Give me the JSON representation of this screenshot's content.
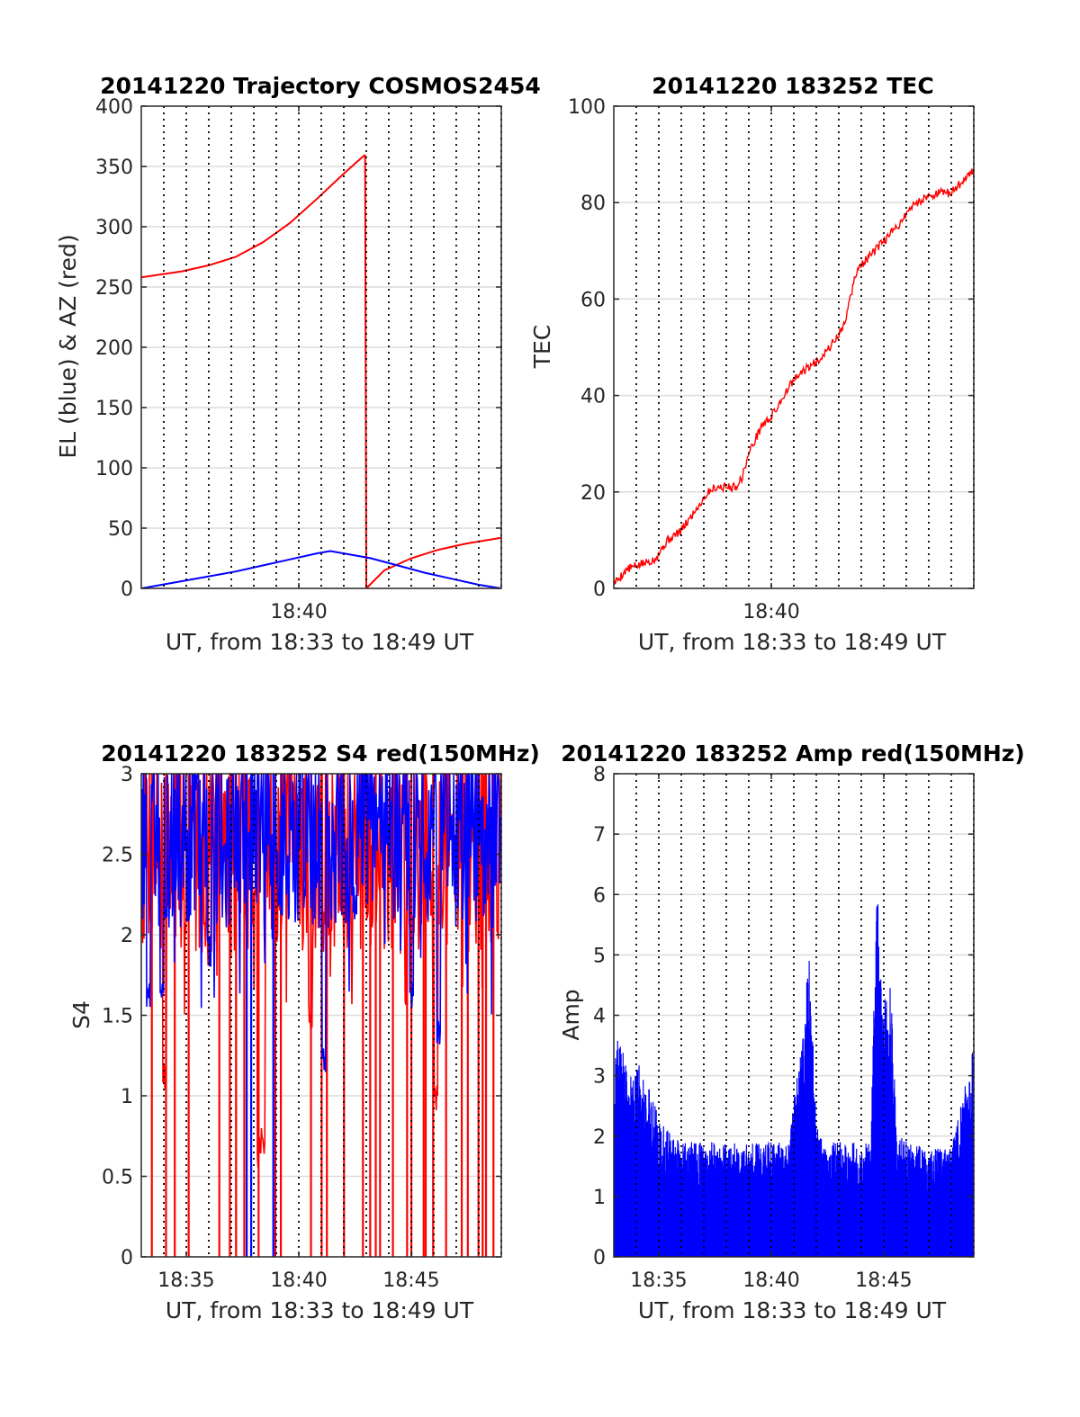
{
  "colors": {
    "red": "#ff0000",
    "blue": "#0000ff",
    "axis": "#262626",
    "grid": "#dcdcdc",
    "vgrid": "#000000"
  },
  "chart_data": [
    {
      "id": "traj",
      "type": "line",
      "title": "20141220 Trajectory COSMOS2454",
      "xlabel": "UT, from 18:33 to 18:49 UT",
      "ylabel": "EL (blue) & AZ (red)",
      "xlim": [
        18.55,
        18.8167
      ],
      "ylim": [
        0,
        400
      ],
      "yticks": [
        0,
        50,
        100,
        150,
        200,
        250,
        300,
        350,
        400
      ],
      "ytick_labels": [
        "0",
        "50",
        "100",
        "150",
        "200",
        "250",
        "300",
        "350",
        "400"
      ],
      "xticks": [
        18.6667
      ],
      "xtick_labels": [
        "18:40"
      ],
      "vgrid_step_min": 1,
      "series": [
        {
          "color": "red",
          "style": "az",
          "x": [
            18.55,
            18.58,
            18.6,
            18.62,
            18.64,
            18.66,
            18.68,
            18.7,
            18.715,
            18.7158,
            18.7167,
            18.73,
            18.75,
            18.77,
            18.79,
            18.8167
          ],
          "y": [
            258,
            263,
            268,
            275,
            287,
            303,
            323,
            344,
            359,
            359,
            0,
            15,
            25,
            32,
            37,
            42
          ]
        },
        {
          "color": "blue",
          "style": "el",
          "x": [
            18.55,
            18.58,
            18.6,
            18.62,
            18.64,
            18.66,
            18.68,
            18.69,
            18.7,
            18.72,
            18.74,
            18.76,
            18.78,
            18.8,
            18.8167
          ],
          "y": [
            0,
            6,
            10,
            14,
            19,
            24,
            29,
            31,
            29,
            25,
            19,
            13,
            8,
            3,
            0
          ]
        }
      ]
    },
    {
      "id": "tec",
      "type": "line",
      "title": "20141220 183252 TEC",
      "xlabel": "UT, from 18:33 to 18:49 UT",
      "ylabel": "TEC",
      "xlim": [
        18.55,
        18.8167
      ],
      "ylim": [
        0,
        100
      ],
      "yticks": [
        0,
        20,
        40,
        60,
        80,
        100
      ],
      "ytick_labels": [
        "0",
        "20",
        "40",
        "60",
        "80",
        "100"
      ],
      "xticks": [
        18.6667
      ],
      "xtick_labels": [
        "18:40"
      ],
      "vgrid_step_min": 1,
      "series": [
        {
          "color": "red",
          "style": "noisy",
          "x": [
            18.55,
            18.56,
            18.57,
            18.58,
            18.59,
            18.6,
            18.61,
            18.62,
            18.625,
            18.63,
            18.64,
            18.645,
            18.65,
            18.66,
            18.665,
            18.67,
            18.68,
            18.69,
            18.7,
            18.71,
            18.72,
            18.73,
            18.74,
            18.75,
            18.76,
            18.77,
            18.78,
            18.79,
            18.8,
            18.81,
            18.8167
          ],
          "y": [
            1,
            4,
            5,
            6,
            10,
            12,
            16,
            20,
            21,
            21,
            21,
            23,
            28,
            34,
            35,
            37,
            42,
            45,
            47,
            50,
            54,
            66,
            69,
            72,
            75,
            79,
            81,
            82,
            82,
            85,
            87
          ]
        }
      ]
    },
    {
      "id": "s4",
      "type": "line",
      "title": "20141220 183252 S4 red(150MHz)",
      "xlabel": "UT, from 18:33 to 18:49 UT",
      "ylabel": "S4",
      "xlim": [
        18.55,
        18.8167
      ],
      "ylim": [
        0,
        3
      ],
      "yticks": [
        0,
        0.5,
        1,
        1.5,
        2,
        2.5,
        3
      ],
      "ytick_labels": [
        "0",
        "0.5",
        "1",
        "1.5",
        "2",
        "2.5",
        "3"
      ],
      "xticks": [
        18.5833,
        18.6667,
        18.75
      ],
      "xtick_labels": [
        "18:35",
        "18:40",
        "18:45"
      ],
      "vgrid_step_min": 1,
      "series": [
        {
          "color": "red",
          "style": "s4",
          "base": 2.3,
          "spread": 0.7,
          "seed": 7,
          "dropouts_x": [
            18.5578,
            18.5683,
            18.5748,
            18.5851,
            18.6078,
            18.6156,
            18.6202,
            18.6263,
            18.6369,
            18.6493,
            18.6534,
            18.6757,
            18.6836,
            18.6875,
            18.7002,
            18.7142,
            18.7196,
            18.7237,
            18.7269,
            18.7364,
            18.7469,
            18.7501,
            18.7592,
            18.7607,
            18.7662,
            18.7758,
            18.7874,
            18.7919,
            18.7998,
            18.8029,
            18.8054,
            18.8109
          ],
          "dips": [
            [
              18.637,
              0.55
            ],
            [
              18.64,
              0.6
            ],
            [
              18.567,
              1.0
            ],
            [
              18.675,
              1.4
            ],
            [
              18.768,
              0.9
            ]
          ]
        },
        {
          "color": "blue",
          "style": "s4",
          "base": 2.4,
          "spread": 0.6,
          "seed": 13,
          "dropouts_x": [
            18.6281,
            18.6314,
            18.6478
          ],
          "dips": [
            [
              18.6,
              1.8
            ],
            [
              18.685,
              1.1
            ],
            [
              18.77,
              1.3
            ],
            [
              18.75,
              1.5
            ],
            [
              18.565,
              1.5
            ],
            [
              18.555,
              1.5
            ]
          ]
        }
      ]
    },
    {
      "id": "amp",
      "type": "line",
      "title": "20141220 183252 Amp red(150MHz)",
      "xlabel": "UT, from 18:33 to 18:49 UT",
      "ylabel": "Amp",
      "xlim": [
        18.55,
        18.8167
      ],
      "ylim": [
        0,
        8
      ],
      "yticks": [
        0,
        1,
        2,
        3,
        4,
        5,
        6,
        7,
        8
      ],
      "ytick_labels": [
        "0",
        "1",
        "2",
        "3",
        "4",
        "5",
        "6",
        "7",
        "8"
      ],
      "xticks": [
        18.5833,
        18.6667,
        18.75
      ],
      "xtick_labels": [
        "18:35",
        "18:40",
        "18:45"
      ],
      "vgrid_step_min": 1,
      "series": [
        {
          "color": "blue",
          "style": "amp",
          "seed": 21,
          "envelope_x": [
            18.55,
            18.555,
            18.56,
            18.57,
            18.58,
            18.585,
            18.6,
            18.62,
            18.64,
            18.66,
            18.68,
            18.695,
            18.7,
            18.705,
            18.72,
            18.74,
            18.745,
            18.75,
            18.755,
            18.76,
            18.78,
            18.8,
            18.81,
            18.8167
          ],
          "envelope_y": [
            3.3,
            4.0,
            3.0,
            3.2,
            2.6,
            2.2,
            1.9,
            1.9,
            1.9,
            1.9,
            1.9,
            5.0,
            2.2,
            1.9,
            1.9,
            1.9,
            6.1,
            4.3,
            4.5,
            2.0,
            1.8,
            1.8,
            2.8,
            3.5
          ]
        }
      ]
    }
  ]
}
